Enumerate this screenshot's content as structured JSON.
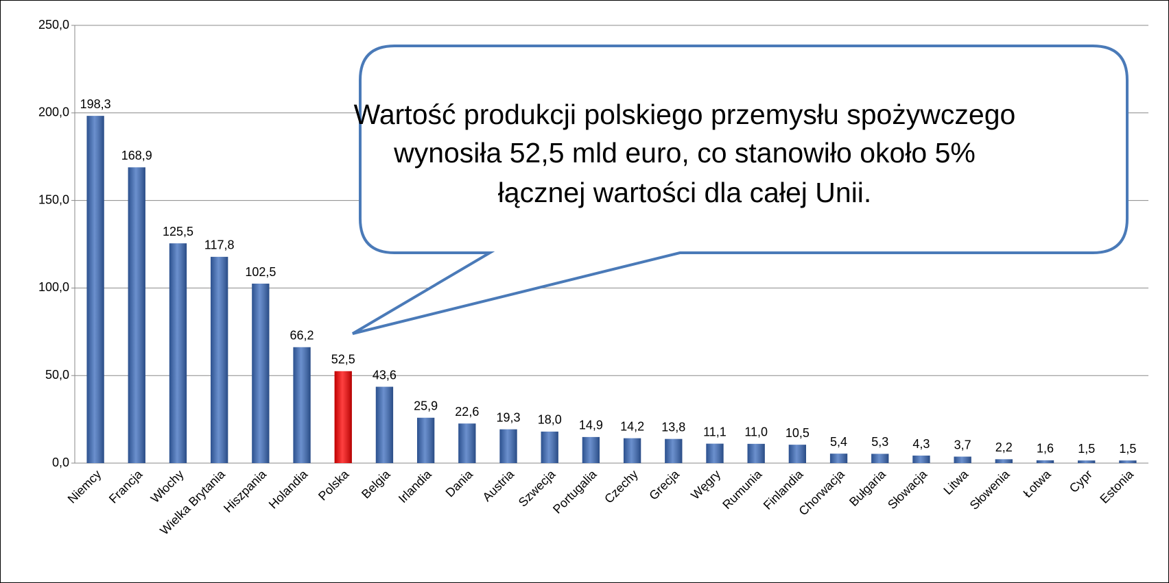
{
  "chart_data": {
    "type": "bar",
    "categories": [
      "Niemcy",
      "Francja",
      "Włochy",
      "Wielka Brytania",
      "Hiszpania",
      "Holandia",
      "Polska",
      "Belgia",
      "Irlandia",
      "Dania",
      "Austria",
      "Szwecja",
      "Portugalia",
      "Czechy",
      "Grecja",
      "Węgry",
      "Rumunia",
      "Finlandia",
      "Chorwacja",
      "Bułgaria",
      "Słowacja",
      "Litwa",
      "Słowenia",
      "Łotwa",
      "Cypr",
      "Estonia"
    ],
    "values": [
      198.3,
      168.9,
      125.5,
      117.8,
      102.5,
      66.2,
      52.5,
      43.6,
      25.9,
      22.6,
      19.3,
      18.0,
      14.9,
      14.2,
      13.8,
      11.1,
      11.0,
      10.5,
      5.4,
      5.3,
      4.3,
      3.7,
      2.2,
      1.6,
      1.5,
      1.5
    ],
    "value_labels": [
      "198,3",
      "168,9",
      "125,5",
      "117,8",
      "102,5",
      "66,2",
      "52,5",
      "43,6",
      "25,9",
      "22,6",
      "19,3",
      "18,0",
      "14,9",
      "14,2",
      "13,8",
      "11,1",
      "11,0",
      "10,5",
      "5,4",
      "5,3",
      "4,3",
      "3,7",
      "2,2",
      "1,6",
      "1,5",
      "1,5"
    ],
    "colors": [
      "#3a6bbd",
      "#3a6bbd",
      "#3a6bbd",
      "#3a6bbd",
      "#3a6bbd",
      "#3a6bbd",
      "#ff0000",
      "#3a6bbd",
      "#3a6bbd",
      "#3a6bbd",
      "#3a6bbd",
      "#3a6bbd",
      "#3a6bbd",
      "#3a6bbd",
      "#3a6bbd",
      "#3a6bbd",
      "#3a6bbd",
      "#3a6bbd",
      "#3a6bbd",
      "#3a6bbd",
      "#3a6bbd",
      "#3a6bbd",
      "#3a6bbd",
      "#3a6bbd",
      "#3a6bbd",
      "#3a6bbd"
    ],
    "ylim": [
      0,
      250
    ],
    "yticks": [
      {
        "value": 0,
        "label": "0,0"
      },
      {
        "value": 50,
        "label": "50,0"
      },
      {
        "value": 100,
        "label": "100,0"
      },
      {
        "value": 150,
        "label": "150,0"
      },
      {
        "value": 200,
        "label": "200,0"
      },
      {
        "value": 250,
        "label": "250,0"
      }
    ],
    "grid": true,
    "annotation": [
      "Wartość produkcji polskiego przemysłu spożywczego",
      "wynosiła 52,5 mld euro, co stanowiło około 5%",
      "łącznej wartości dla całej Unii."
    ]
  }
}
